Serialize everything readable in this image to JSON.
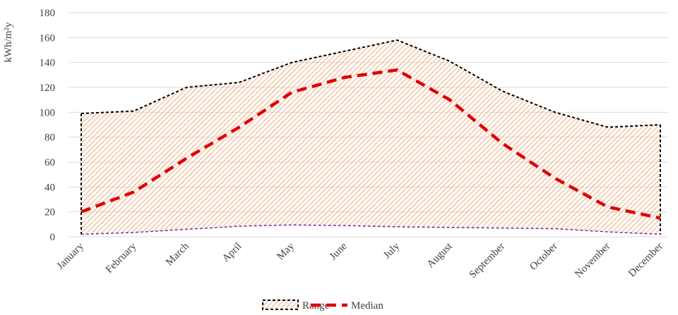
{
  "chart_data": {
    "type": "range-line",
    "y_label": "kWh/m²y",
    "categories": [
      "January",
      "February",
      "March",
      "April",
      "May",
      "June",
      "July",
      "August",
      "September",
      "October",
      "November",
      "December"
    ],
    "series": [
      {
        "name": "Range",
        "color": "#f4b183",
        "edge_color": "#000000",
        "lower_color": "#7030a0",
        "values": [
          99,
          101,
          120,
          124,
          140,
          149,
          158,
          141,
          117,
          100,
          88,
          90
        ],
        "lower": [
          2,
          3.5,
          6,
          8.5,
          9.5,
          9,
          8,
          7.5,
          7,
          6.5,
          4,
          2
        ]
      },
      {
        "name": "Median",
        "color": "#e00000",
        "values": [
          20,
          36,
          63,
          88,
          116,
          128,
          134,
          110,
          75,
          47,
          24,
          15
        ]
      }
    ],
    "ylim": [
      0,
      180
    ],
    "yticks": [
      0,
      20,
      40,
      60,
      80,
      100,
      120,
      140,
      160,
      180
    ],
    "grid": true,
    "legend": "bottom"
  }
}
